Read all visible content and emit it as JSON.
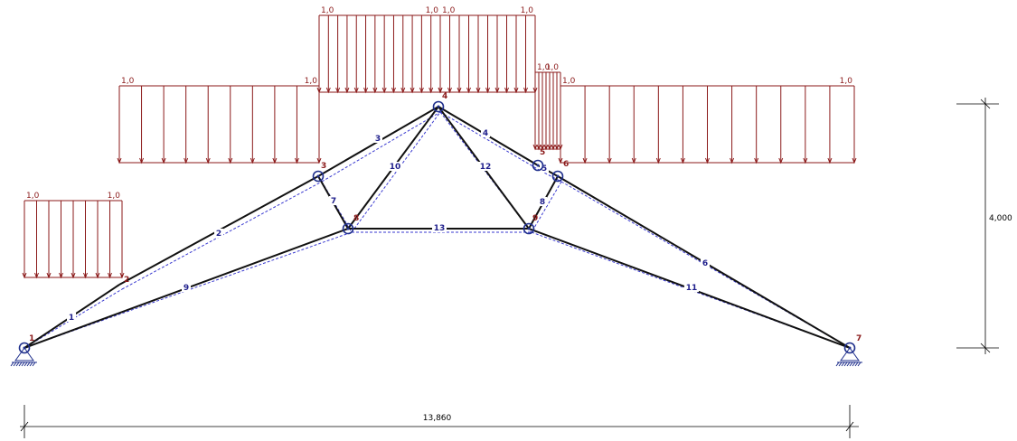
{
  "nodes": [
    {
      "id": "1",
      "label": "1"
    },
    {
      "id": "2",
      "label": "2"
    },
    {
      "id": "3",
      "label": "3"
    },
    {
      "id": "4",
      "label": "4"
    },
    {
      "id": "5",
      "label": "5"
    },
    {
      "id": "6",
      "label": "6"
    },
    {
      "id": "7",
      "label": "7"
    },
    {
      "id": "8",
      "label": "8"
    },
    {
      "id": "9",
      "label": "9"
    }
  ],
  "members": [
    {
      "label": "1",
      "from": "1",
      "to": "2"
    },
    {
      "label": "2",
      "from": "2",
      "to": "3"
    },
    {
      "label": "3",
      "from": "3",
      "to": "4"
    },
    {
      "label": "4",
      "from": "4",
      "to": "5"
    },
    {
      "label": "5",
      "from": "5",
      "to": "6"
    },
    {
      "label": "6",
      "from": "6",
      "to": "7"
    },
    {
      "label": "7",
      "from": "3",
      "to": "8"
    },
    {
      "label": "8",
      "from": "6",
      "to": "9"
    },
    {
      "label": "9",
      "from": "1",
      "to": "8"
    },
    {
      "label": "10",
      "from": "8",
      "to": "4"
    },
    {
      "label": "11",
      "from": "9",
      "to": "7"
    },
    {
      "label": "12",
      "from": "4",
      "to": "9"
    },
    {
      "label": "13",
      "from": "8",
      "to": "9"
    }
  ],
  "loads": [
    {
      "start_value": "1,0",
      "end_value": "1,0"
    },
    {
      "start_value": "1,0",
      "end_value": "1,0"
    },
    {
      "start_value": "1,0",
      "end_value": "1,0"
    },
    {
      "start_value": "1,0",
      "end_value": "1,0"
    },
    {
      "start_value": "1,0",
      "end_value": "1,0"
    },
    {
      "start_value": "1,0",
      "end_value": "1,0"
    }
  ],
  "dimensions": {
    "span": "13,860",
    "height": "4,000"
  },
  "colors": {
    "load": "#8b1a1a",
    "member": "#111111",
    "deformed": "#3a3ad0",
    "node": "#1f2f8c",
    "member_label": "#1f1f8c"
  }
}
